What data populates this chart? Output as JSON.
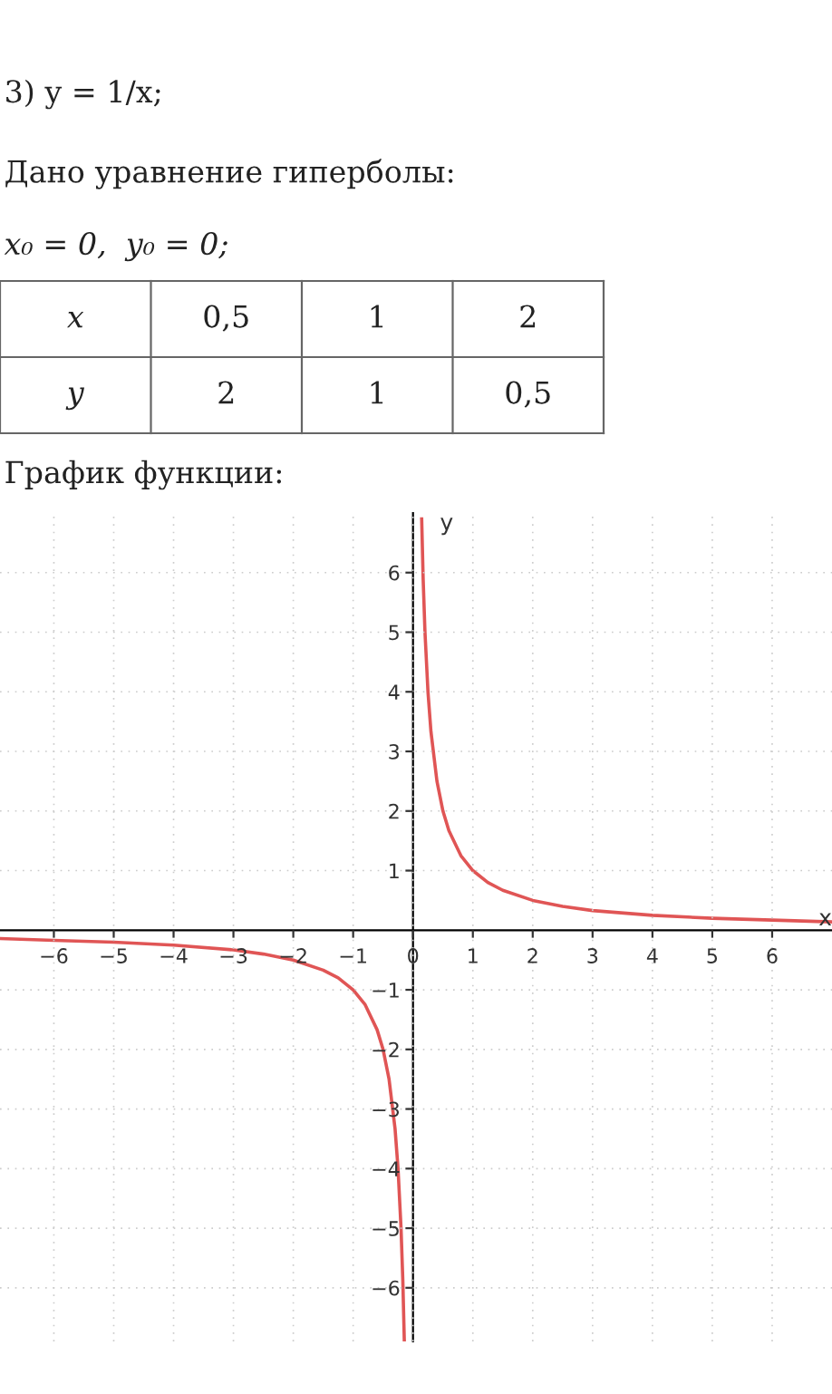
{
  "chart_data": {
    "type": "line",
    "annotations": [
      "3) y = 1/x;",
      "Дано уравнение гиперболы:",
      "x₀ = 0,  y₀ = 0;",
      "x",
      "0,5",
      "1",
      "2",
      "y",
      "2",
      "1",
      "0,5",
      "График функции:"
    ],
    "xlabel": "x",
    "ylabel": "y",
    "series": [
      {
        "color": "#e05555",
        "x": [
          -6.9,
          -6,
          -5,
          -4,
          -3,
          -2.5,
          -2,
          -1.5,
          -1.25,
          -1,
          -0.8,
          -0.6,
          -0.5,
          -0.4,
          -0.3,
          -0.25,
          -0.2,
          -0.17,
          -0.145
        ],
        "values": [
          -0.14,
          -0.17,
          -0.2,
          -0.25,
          -0.33,
          -0.4,
          -0.5,
          -0.67,
          -0.8,
          -1,
          -1.25,
          -1.67,
          -2,
          -2.5,
          -3.33,
          -4,
          -5,
          -5.88,
          -6.9
        ]
      },
      {
        "color": "#e05555",
        "x": [
          0.145,
          0.17,
          0.2,
          0.25,
          0.3,
          0.4,
          0.5,
          0.6,
          0.8,
          1,
          1.25,
          1.5,
          2,
          2.5,
          3,
          4,
          5,
          6,
          7
        ],
        "values": [
          6.9,
          5.88,
          5,
          4,
          3.33,
          2.5,
          2,
          1.67,
          1.25,
          1,
          0.8,
          0.67,
          0.5,
          0.4,
          0.33,
          0.25,
          0.2,
          0.17,
          0.14
        ]
      }
    ],
    "xlim": [
      -6.9,
      7
    ],
    "ylim": [
      -6.9,
      7
    ],
    "xticks": [
      -6,
      -5,
      -4,
      -3,
      -2,
      -1,
      0,
      1,
      2,
      3,
      4,
      5,
      6
    ],
    "yticks": [
      -6,
      -5,
      -4,
      -3,
      -2,
      -1,
      1,
      2,
      3,
      4,
      5,
      6
    ],
    "grid": true,
    "marker": "none",
    "line_style": "solid"
  }
}
